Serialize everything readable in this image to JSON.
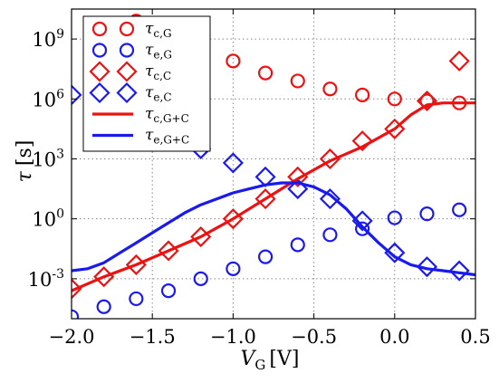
{
  "chart_data": {
    "type": "scatter",
    "xlabel": "V_G [V]",
    "ylabel": "τ [s]",
    "x_main": "V",
    "x_sub": "G",
    "x_unit": "[V]",
    "y_main": "τ",
    "y_unit": "[s]",
    "xlim": [
      -2.0,
      0.5
    ],
    "ylim_log10": [
      -5,
      10.5
    ],
    "y_scale": "log",
    "grid": true,
    "legend_position": "upper-left",
    "xticks": [
      {
        "value": -2.0,
        "label": "−2.0"
      },
      {
        "value": -1.5,
        "label": "−1.5"
      },
      {
        "value": -1.0,
        "label": "−1.0"
      },
      {
        "value": -0.5,
        "label": "−0.5"
      },
      {
        "value": 0.0,
        "label": "0.0"
      },
      {
        "value": 0.5,
        "label": "0.5"
      }
    ],
    "yticks": [
      {
        "exp": -3,
        "base": "10",
        "sup": "-3"
      },
      {
        "exp": 0,
        "base": "10",
        "sup": "0"
      },
      {
        "exp": 3,
        "base": "10",
        "sup": "3"
      },
      {
        "exp": 6,
        "base": "10",
        "sup": "6"
      },
      {
        "exp": 9,
        "base": "10",
        "sup": "9"
      }
    ],
    "series": [
      {
        "name": "τc,G",
        "sym": "τ",
        "sub": "c,G",
        "marker": "circle",
        "color": "#ee1111",
        "x": [
          -1.6,
          -1.4,
          -1.2,
          -1.0,
          -0.8,
          -0.6,
          -0.4,
          -0.2,
          0.0,
          0.2,
          0.4
        ],
        "y_log10": [
          9.9,
          9.3,
          8.7,
          7.9,
          7.3,
          6.9,
          6.5,
          6.2,
          6.0,
          5.9,
          5.8
        ]
      },
      {
        "name": "τe,G",
        "sym": "τ",
        "sub": "e,G",
        "marker": "circle",
        "color": "#1a1aee",
        "x": [
          -2.0,
          -1.8,
          -1.6,
          -1.4,
          -1.2,
          -1.0,
          -0.8,
          -0.6,
          -0.4,
          -0.2,
          0.0,
          0.2,
          0.4
        ],
        "y_log10": [
          -4.9,
          -4.4,
          -4.0,
          -3.6,
          -3.0,
          -2.5,
          -1.9,
          -1.3,
          -0.8,
          -0.5,
          0.05,
          0.25,
          0.45
        ]
      },
      {
        "name": "τc,C",
        "sym": "τ",
        "sub": "c,C",
        "marker": "diamond",
        "color": "#ee1111",
        "x": [
          -2.0,
          -1.8,
          -1.6,
          -1.4,
          -1.2,
          -1.0,
          -0.8,
          -0.6,
          -0.4,
          -0.2,
          0.0,
          0.2,
          0.4
        ],
        "y_log10": [
          -3.5,
          -2.9,
          -2.3,
          -1.6,
          -0.9,
          0.0,
          1.0,
          2.1,
          3.0,
          3.9,
          4.5,
          5.9,
          7.9
        ]
      },
      {
        "name": "τe,C",
        "sym": "τ",
        "sub": "e,C",
        "marker": "diamond",
        "color": "#1a1aee",
        "x": [
          -2.0,
          -1.8,
          -1.6,
          -1.4,
          -1.2,
          -1.0,
          -0.8,
          -0.6,
          -0.4,
          -0.2,
          0.0,
          0.2,
          0.4
        ],
        "y_log10": [
          6.2,
          5.5,
          4.9,
          4.4,
          3.5,
          2.8,
          2.1,
          1.5,
          1.0,
          -0.1,
          -1.7,
          -2.4,
          -2.6
        ]
      },
      {
        "name": "τc,G+C",
        "sym": "τ",
        "sub": "c,G+C",
        "marker": "line",
        "color": "#ee1111",
        "x": [
          -2.0,
          -1.8,
          -1.6,
          -1.4,
          -1.2,
          -1.0,
          -0.8,
          -0.6,
          -0.4,
          -0.2,
          0.0,
          0.1,
          0.2,
          0.3,
          0.5
        ],
        "y_log10": [
          -3.6,
          -2.9,
          -2.3,
          -1.6,
          -0.9,
          0.0,
          1.0,
          2.0,
          2.9,
          3.6,
          4.5,
          5.2,
          5.7,
          5.8,
          5.8
        ]
      },
      {
        "name": "τe,G+C",
        "sym": "τ",
        "sub": "e,G+C",
        "marker": "line",
        "color": "#1a1aee",
        "x": [
          -2.0,
          -1.9,
          -1.8,
          -1.7,
          -1.6,
          -1.5,
          -1.4,
          -1.3,
          -1.2,
          -1.1,
          -1.0,
          -0.9,
          -0.8,
          -0.7,
          -0.6,
          -0.5,
          -0.4,
          -0.3,
          -0.2,
          -0.1,
          0.0,
          0.1,
          0.2,
          0.3,
          0.4,
          0.5
        ],
        "y_log10": [
          -2.6,
          -2.5,
          -2.2,
          -1.7,
          -1.2,
          -0.7,
          -0.2,
          0.3,
          0.7,
          1.0,
          1.3,
          1.5,
          1.7,
          1.8,
          1.8,
          1.6,
          1.2,
          0.5,
          -0.4,
          -1.2,
          -1.9,
          -2.3,
          -2.5,
          -2.6,
          -2.7,
          -2.8
        ]
      }
    ]
  }
}
